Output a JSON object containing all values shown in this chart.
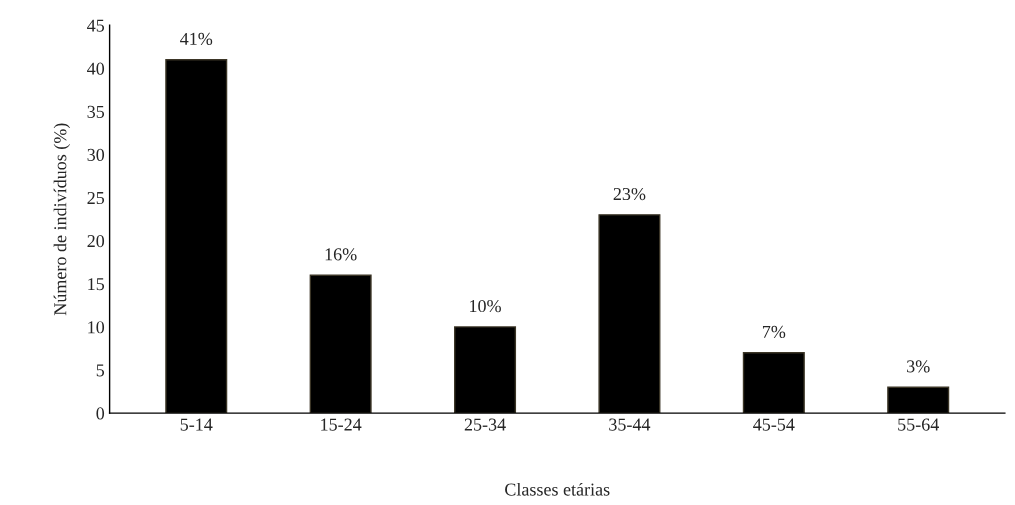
{
  "chart_data": {
    "type": "bar",
    "xlabel": "Classes etárias",
    "ylabel": "Número de indivíduos (%)",
    "categories": [
      "5-14",
      "15-24",
      "25-34",
      "35-44",
      "45-54",
      "55-64"
    ],
    "values": [
      41,
      16,
      10,
      23,
      7,
      3
    ],
    "value_labels": [
      "41%",
      "16%",
      "10%",
      "23%",
      "7%",
      "3%"
    ],
    "color": "#000000",
    "ylim": [
      0,
      45
    ],
    "yticks": [
      0,
      5,
      10,
      15,
      20,
      25,
      30,
      35,
      40,
      45
    ],
    "grid": false
  }
}
